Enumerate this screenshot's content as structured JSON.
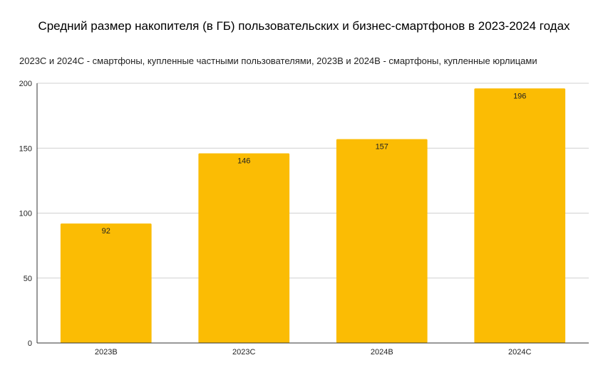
{
  "chart_data": {
    "type": "bar",
    "title": "Средний размер накопителя (в ГБ) пользовательских и бизнес-смартфонов в 2023-2024 годах",
    "subtitle": "2023С и 2024С - смартфоны, купленные частными пользователями, 2023B и 2024B - смартфоны, купленные юрлицами",
    "categories": [
      "2023B",
      "2023C",
      "2024B",
      "2024C"
    ],
    "values": [
      92,
      146,
      157,
      196
    ],
    "data_labels": [
      "92",
      "146",
      "157",
      "196"
    ],
    "ylim": [
      0,
      200
    ],
    "yticks": [
      0,
      50,
      100,
      150,
      200
    ],
    "grid": true,
    "legend": "none",
    "bar_color": "#FBBC04",
    "grid_color": "#D0D0D0",
    "axis_color": "#333333"
  }
}
